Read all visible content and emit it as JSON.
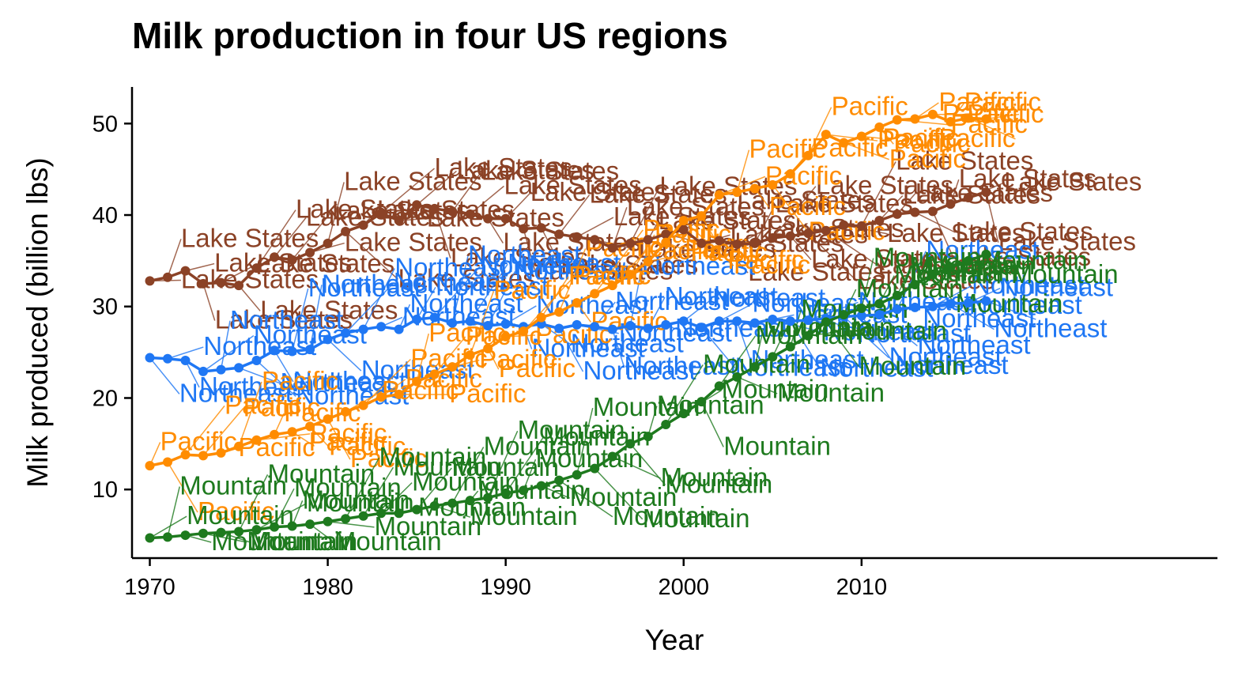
{
  "chart_data": {
    "type": "line",
    "title": "Milk production in four US regions",
    "xlabel": "Year",
    "ylabel": "Milk produced (billion lbs)",
    "xlim": [
      1969,
      2030
    ],
    "ylim": [
      2.5,
      54
    ],
    "x_ticks": [
      1970,
      1980,
      1990,
      2000,
      2010
    ],
    "y_ticks": [
      10,
      20,
      30,
      40,
      50
    ],
    "grid": false,
    "legend": "none",
    "x": [
      1970,
      1971,
      1972,
      1973,
      1974,
      1975,
      1976,
      1977,
      1978,
      1979,
      1980,
      1981,
      1982,
      1983,
      1984,
      1985,
      1986,
      1987,
      1988,
      1989,
      1990,
      1991,
      1992,
      1993,
      1994,
      1995,
      1996,
      1997,
      1998,
      1999,
      2000,
      2001,
      2002,
      2003,
      2004,
      2005,
      2006,
      2007,
      2008,
      2009,
      2010,
      2011,
      2012,
      2013,
      2014,
      2015,
      2016,
      2017
    ],
    "series": [
      {
        "name": "Lake States",
        "color": "#8B4226",
        "values": [
          32.8,
          33.2,
          33.9,
          32.5,
          32.6,
          32.3,
          34.2,
          35.4,
          35.1,
          35.9,
          36.9,
          38.2,
          38.9,
          40.2,
          39.4,
          41.1,
          40.7,
          40.4,
          40.1,
          39.6,
          39.6,
          38.5,
          38.6,
          37.9,
          37.6,
          37.3,
          36.4,
          36.9,
          37.3,
          37.9,
          38.4,
          36.9,
          37.2,
          36.8,
          36.9,
          37.5,
          37.7,
          38.0,
          38.3,
          38.9,
          38.8,
          39.4,
          40.1,
          40.3,
          40.4,
          41.2,
          41.9,
          42.5
        ]
      },
      {
        "name": "Northeast",
        "color": "#1F77F4",
        "values": [
          24.4,
          24.3,
          24.1,
          22.9,
          23.1,
          23.3,
          24.1,
          25.2,
          25.1,
          25.3,
          26.4,
          27.1,
          27.5,
          27.8,
          27.5,
          28.6,
          28.8,
          28.2,
          28.4,
          27.9,
          28.1,
          27.8,
          28.1,
          27.6,
          28.0,
          27.8,
          27.5,
          27.9,
          27.6,
          28.0,
          28.4,
          27.7,
          28.4,
          28.4,
          28.2,
          28.6,
          28.4,
          28.5,
          28.7,
          28.9,
          29.0,
          29.1,
          29.7,
          29.9,
          30.0,
          30.3,
          30.4,
          30.6
        ]
      },
      {
        "name": "Pacific",
        "color": "#FF8C00",
        "values": [
          12.6,
          13.0,
          13.8,
          13.7,
          14.0,
          14.7,
          15.4,
          16.0,
          16.3,
          16.9,
          17.7,
          18.5,
          19.2,
          20.1,
          20.4,
          21.8,
          22.6,
          23.4,
          24.7,
          25.4,
          26.7,
          27.3,
          28.8,
          29.4,
          30.4,
          31.4,
          32.3,
          33.5,
          34.9,
          37.0,
          39.4,
          39.9,
          42.2,
          42.5,
          42.9,
          43.3,
          44.5,
          46.5,
          48.8,
          47.9,
          48.6,
          49.6,
          50.4,
          50.5,
          51.0,
          50.2,
          50.6,
          50.5
        ]
      },
      {
        "name": "Mountain",
        "color": "#1E7A1E",
        "values": [
          4.7,
          4.8,
          5.0,
          5.2,
          5.3,
          5.4,
          5.6,
          5.9,
          6.0,
          6.2,
          6.5,
          6.8,
          7.1,
          7.4,
          7.4,
          7.8,
          8.2,
          8.5,
          8.8,
          9.1,
          9.6,
          9.9,
          10.4,
          11.0,
          11.6,
          12.3,
          13.6,
          15.0,
          15.8,
          17.1,
          18.3,
          19.6,
          21.3,
          22.3,
          23.4,
          24.5,
          25.6,
          26.8,
          28.3,
          29.1,
          29.8,
          30.3,
          31.2,
          32.4,
          33.5,
          34.3,
          35.0,
          35.7
        ]
      }
    ]
  }
}
